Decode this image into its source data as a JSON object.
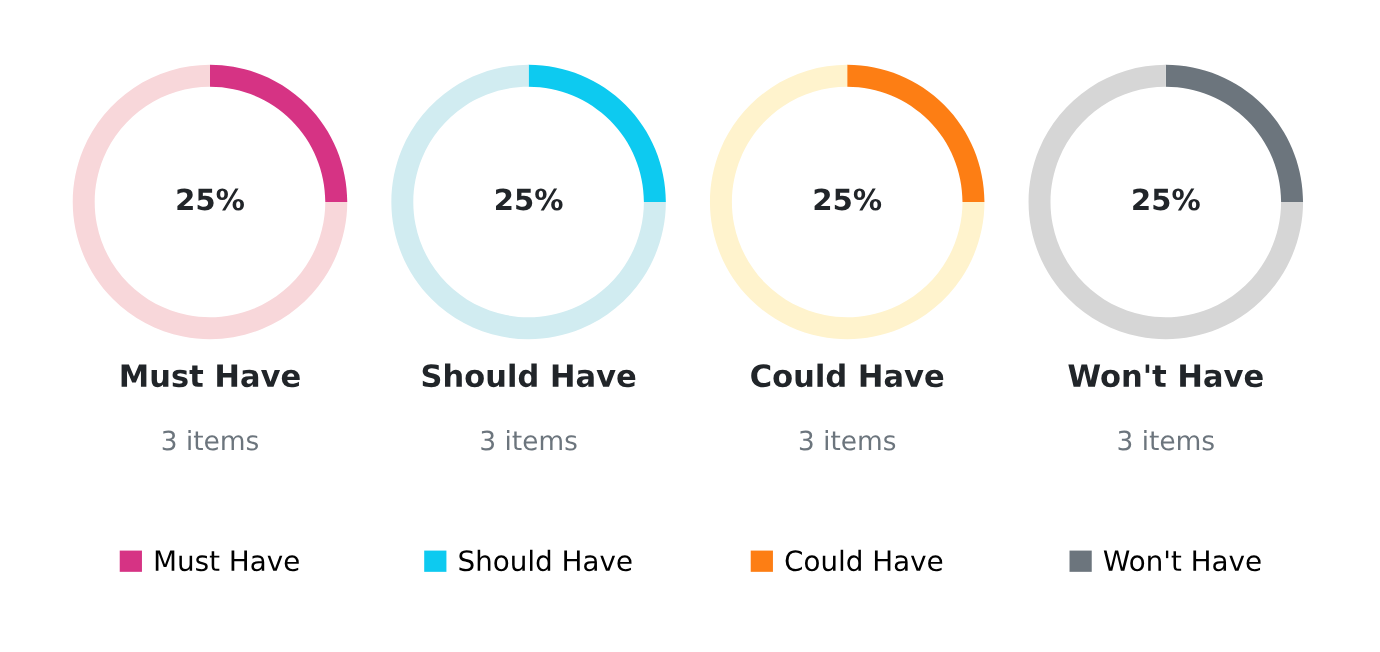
{
  "chart_data": [
    {
      "type": "donut",
      "title": "Must Have",
      "subtitle": "3 items",
      "categories": [
        "Must Have",
        null
      ],
      "values": [
        25,
        75
      ],
      "colors": [
        "#d63384",
        "#f8d7da"
      ],
      "value_labels": [
        "25%",
        null
      ],
      "legend": "bottom"
    },
    {
      "type": "donut",
      "title": "Should Have",
      "subtitle": "3 items",
      "categories": [
        "Should Have",
        null
      ],
      "values": [
        25,
        75
      ],
      "colors": [
        "#0dcaf0",
        "#d1ecf1"
      ],
      "value_labels": [
        "25%",
        null
      ],
      "legend": "bottom"
    },
    {
      "type": "donut",
      "title": "Could Have",
      "subtitle": "3 items",
      "categories": [
        "Could Have",
        null
      ],
      "values": [
        25,
        75
      ],
      "colors": [
        "#fd7e14",
        "#fff3cd"
      ],
      "value_labels": [
        "25%",
        null
      ],
      "legend": "bottom"
    },
    {
      "type": "donut",
      "title": "Won't Have",
      "subtitle": "3 items",
      "categories": [
        "Won't Have",
        null
      ],
      "values": [
        25,
        75
      ],
      "colors": [
        "#6c757d",
        "#d6d6d6"
      ],
      "value_labels": [
        "25%",
        null
      ],
      "legend": "bottom"
    }
  ]
}
